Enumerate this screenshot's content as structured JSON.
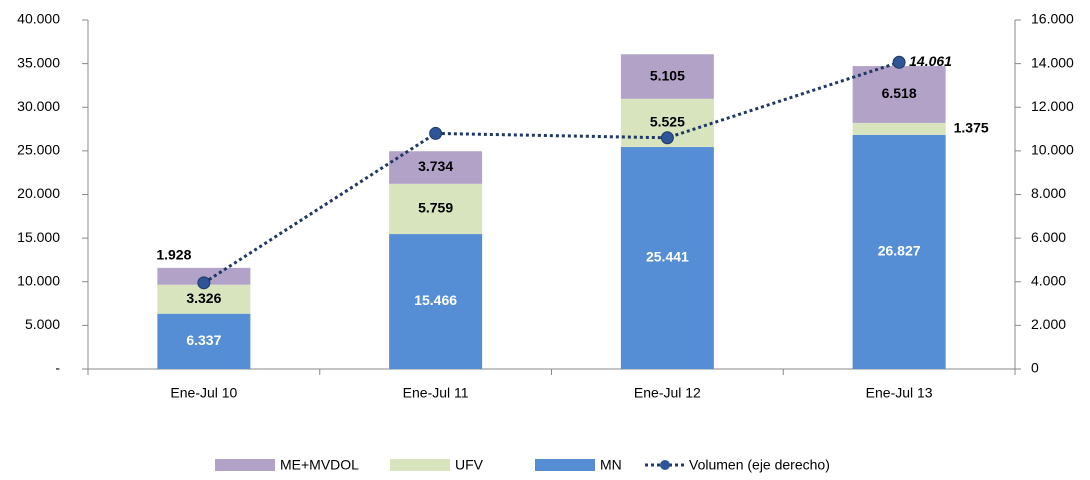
{
  "chart_data": {
    "type": "bar",
    "stacked": true,
    "categories": [
      "Ene-Jul 10",
      "Ene-Jul 11",
      "Ene-Jul 12",
      "Ene-Jul 13"
    ],
    "series": [
      {
        "name": "MN",
        "color": "#558ed5",
        "values": [
          6337,
          15466,
          25441,
          26827
        ],
        "value_labels": [
          "6.337",
          "15.466",
          "25.441",
          "26.827"
        ]
      },
      {
        "name": "UFV",
        "color": "#d7e4bd",
        "values": [
          3326,
          5759,
          5525,
          1375
        ],
        "value_labels": [
          "3.326",
          "5.759",
          "5.525",
          "1.375"
        ]
      },
      {
        "name": "ME+MVDOL",
        "color": "#b3a2c7",
        "values": [
          1928,
          3734,
          5105,
          6518
        ],
        "value_labels": [
          "1.928",
          "3.734",
          "5.105",
          "6.518"
        ]
      },
      {
        "name": "Volumen (eje derecho)",
        "type": "line",
        "axis": "y2",
        "color": "#1f3864",
        "values": [
          3950,
          10800,
          10600,
          14061
        ],
        "value_labels": [
          null,
          null,
          null,
          "14.061"
        ]
      }
    ],
    "ylim": [
      0,
      40000
    ],
    "yticks": [
      {
        "value": 0,
        "label": "-"
      },
      {
        "value": 5000,
        "label": "5.000"
      },
      {
        "value": 10000,
        "label": "10.000"
      },
      {
        "value": 15000,
        "label": "15.000"
      },
      {
        "value": 20000,
        "label": "20.000"
      },
      {
        "value": 25000,
        "label": "25.000"
      },
      {
        "value": 30000,
        "label": "30.000"
      },
      {
        "value": 35000,
        "label": "35.000"
      },
      {
        "value": 40000,
        "label": "40.000"
      }
    ],
    "y2lim": [
      0,
      16000
    ],
    "y2ticks": [
      0,
      {
        "value": 2000,
        "label": "2.000"
      },
      {
        "value": 4000,
        "label": "4.000"
      },
      {
        "value": 6000,
        "label": "6.000"
      },
      {
        "value": 8000,
        "label": "8.000"
      },
      {
        "value": 10000,
        "label": "10.000"
      },
      {
        "value": 12000,
        "label": "12.000"
      },
      {
        "value": 14000,
        "label": "14.000"
      },
      {
        "value": 16000,
        "label": "16.000"
      }
    ],
    "grid": false,
    "legend": "bottom"
  }
}
